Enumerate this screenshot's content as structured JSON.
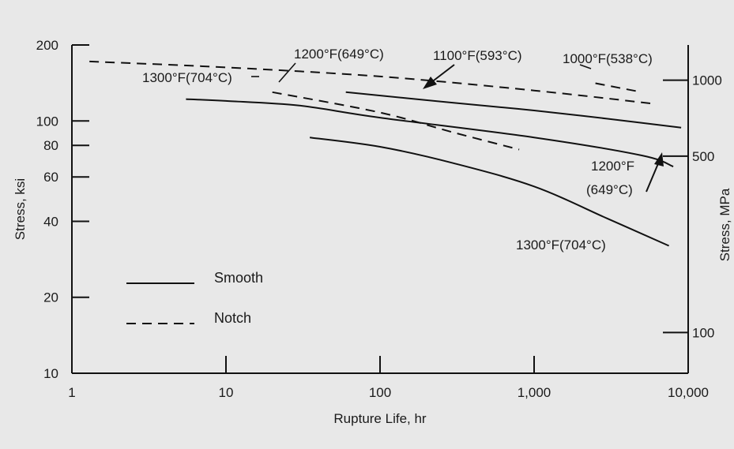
{
  "chart_data": {
    "type": "line",
    "xlabel": "Rupture Life, hr",
    "ylabel": "Stress, ksi",
    "y2label": "Stress, MPa",
    "x_scale": "log",
    "y_scale": "log",
    "xlim": [
      1,
      10000
    ],
    "ylim": [
      10,
      200
    ],
    "x_ticks": [
      1,
      10,
      100,
      1000,
      10000
    ],
    "x_tick_labels": [
      "1",
      "10",
      "100",
      "1,000",
      "10,000"
    ],
    "y_ticks": [
      10,
      20,
      40,
      60,
      80,
      100,
      200
    ],
    "y_tick_labels": [
      "10",
      "20",
      "40",
      "60",
      "80",
      "100",
      "200"
    ],
    "y2_ticks": [
      100,
      500,
      1000
    ],
    "y2_tick_labels": [
      "100",
      "500",
      "1000"
    ],
    "grid": false,
    "legend": {
      "placement": "bottom-left",
      "entries": [
        {
          "label": "Smooth",
          "style": "solid"
        },
        {
          "label": "Notch",
          "style": "dashed"
        }
      ]
    },
    "series": [
      {
        "style": "dashed",
        "x": [
          1.3,
          10,
          100,
          1000,
          6000
        ],
        "y": [
          172,
          163,
          150,
          132,
          117
        ]
      },
      {
        "style": "dashed",
        "x": [
          20,
          100,
          300,
          800
        ],
        "y": [
          130,
          108,
          90,
          77
        ]
      },
      {
        "style": "dashed",
        "x": [
          2500,
          5000
        ],
        "y": [
          141,
          130
        ]
      },
      {
        "style": "solid",
        "x": [
          60,
          300,
          1000,
          3000,
          9000
        ],
        "y": [
          130,
          118,
          110,
          102,
          94
        ]
      },
      {
        "style": "solid",
        "x": [
          5.5,
          10,
          30,
          100,
          1000,
          5000,
          8000
        ],
        "y": [
          122,
          120,
          115,
          103,
          86,
          73,
          66
        ]
      },
      {
        "style": "solid",
        "x": [
          35,
          100,
          300,
          1000,
          3000,
          7500
        ],
        "y": [
          86,
          79,
          68,
          55,
          41,
          32
        ]
      }
    ],
    "annotations": [
      {
        "text": "1200°F(649°C)"
      },
      {
        "text": "1100°F(593°C)"
      },
      {
        "text": "1000°F(538°C)"
      },
      {
        "text": "1300°F(704°C)"
      },
      {
        "text": "1200°F"
      },
      {
        "text": "(649°C)"
      },
      {
        "text": "1300°F(704°C)"
      }
    ]
  }
}
